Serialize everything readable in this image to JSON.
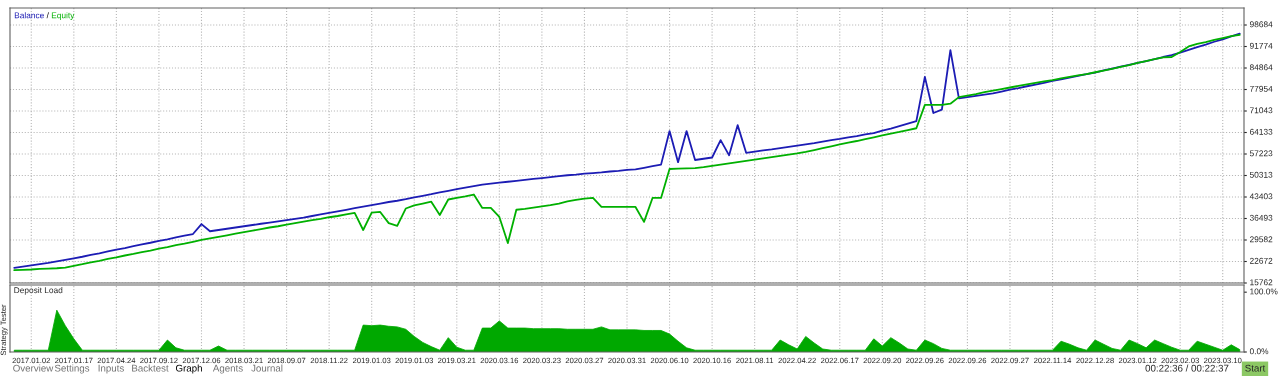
{
  "chart_data": [
    {
      "type": "line",
      "ylim": [
        15762,
        104150
      ],
      "yticks": [
        15762,
        22672,
        29582,
        36493,
        43403,
        50313,
        57223,
        64133,
        71043,
        77954,
        84864,
        91774,
        98684
      ],
      "categories": [
        null,
        null,
        "2017.01.02",
        null,
        null,
        null,
        null,
        "2017.01.17",
        null,
        null,
        null,
        null,
        "2017.04.24",
        null,
        null,
        null,
        null,
        "2017.09.12",
        null,
        null,
        null,
        null,
        "2017.12.06",
        null,
        null,
        null,
        null,
        "2018.03.21",
        null,
        null,
        null,
        null,
        "2018.09.07",
        null,
        null,
        null,
        null,
        "2018.11.22",
        null,
        null,
        null,
        null,
        "2019.01.03",
        null,
        null,
        null,
        null,
        "2019.01.03",
        null,
        null,
        null,
        null,
        "2019.03.21",
        null,
        null,
        null,
        null,
        "2020.03.16",
        null,
        null,
        null,
        null,
        "2020.03.23",
        null,
        null,
        null,
        null,
        "2020.03.27",
        null,
        null,
        null,
        null,
        "2020.03.31",
        null,
        null,
        null,
        null,
        "2020.06.10",
        null,
        null,
        null,
        null,
        "2020.10.16",
        null,
        null,
        null,
        null,
        "2021.08.11",
        null,
        null,
        null,
        null,
        "2022.04.22",
        null,
        null,
        null,
        null,
        "2022.06.17",
        null,
        null,
        null,
        null,
        "2022.09.20",
        null,
        null,
        null,
        null,
        "2022.09.26",
        null,
        null,
        null,
        null,
        "2022.09.26",
        null,
        null,
        null,
        null,
        "2022.09.27",
        null,
        null,
        null,
        null,
        "2022.11.14",
        null,
        null,
        null,
        null,
        "2022.12.28",
        null,
        null,
        null,
        null,
        "2023.01.12",
        null,
        null,
        null,
        null,
        "2023.02.03",
        null,
        null,
        null,
        null,
        "2023.03.10",
        null,
        null
      ],
      "tick_labels": "y",
      "grid": true,
      "legend": "top left",
      "line_style": "solid",
      "annotations": [
        "/"
      ],
      "series": [
        {
          "name": "Balance",
          "color": "#1c1cb4",
          "values": [
            20600,
            21000,
            21400,
            21800,
            22200,
            22700,
            23200,
            23700,
            24200,
            24800,
            25300,
            25900,
            26500,
            27000,
            27600,
            28200,
            28700,
            29300,
            29800,
            30400,
            31000,
            31500,
            34700,
            32400,
            32800,
            33200,
            33600,
            34000,
            34400,
            34800,
            35200,
            35600,
            36000,
            36400,
            36800,
            37300,
            37800,
            38300,
            38800,
            39300,
            39800,
            40300,
            40800,
            41300,
            41800,
            42200,
            42700,
            43300,
            43800,
            44300,
            44900,
            45400,
            45900,
            46400,
            46900,
            47400,
            47700,
            48000,
            48300,
            48600,
            48900,
            49200,
            49500,
            49800,
            50100,
            50400,
            50600,
            50900,
            51100,
            51300,
            51600,
            51800,
            52100,
            52300,
            52800,
            53300,
            53800,
            64600,
            54600,
            64600,
            55300,
            55700,
            56100,
            61700,
            56800,
            66500,
            57600,
            58000,
            58400,
            58700,
            59100,
            59500,
            59900,
            60300,
            60700,
            61200,
            61700,
            62100,
            62600,
            63000,
            63500,
            63900,
            64700,
            65400,
            66200,
            67000,
            67800,
            82000,
            70400,
            71500,
            90600,
            75100,
            75500,
            75900,
            76300,
            76700,
            77300,
            77900,
            78400,
            79000,
            79500,
            80100,
            80700,
            81200,
            81800,
            82300,
            82900,
            83400,
            84100,
            84700,
            85300,
            85900,
            86500,
            87100,
            87700,
            88400,
            89000,
            89800,
            90700,
            91600,
            92400,
            93300,
            94100,
            95000,
            95900
          ]
        },
        {
          "name": "Equity",
          "color": "#00b000",
          "values": [
            19900,
            20000,
            20100,
            20300,
            20400,
            20500,
            20700,
            21300,
            21800,
            22400,
            22900,
            23500,
            24000,
            24600,
            25100,
            25700,
            26200,
            26800,
            27300,
            27900,
            28400,
            29000,
            29600,
            30100,
            30600,
            31100,
            31600,
            32100,
            32600,
            33100,
            33600,
            34000,
            34500,
            35000,
            35500,
            36000,
            36400,
            36900,
            37300,
            37800,
            38300,
            32800,
            38400,
            38600,
            35000,
            34100,
            39700,
            40700,
            41300,
            41900,
            37600,
            42600,
            43100,
            43600,
            44200,
            39900,
            39900,
            37000,
            28600,
            39300,
            39600,
            40000,
            40400,
            40800,
            41300,
            42000,
            42500,
            42900,
            43100,
            40200,
            40200,
            40200,
            40200,
            40200,
            35400,
            43100,
            43100,
            52400,
            52500,
            52600,
            52700,
            53000,
            53400,
            53800,
            54200,
            54600,
            55000,
            55400,
            55800,
            56200,
            56600,
            57000,
            57400,
            57900,
            58500,
            59100,
            59700,
            60300,
            60900,
            61400,
            62000,
            62600,
            63200,
            63800,
            64300,
            64900,
            65500,
            73000,
            73000,
            73000,
            73400,
            75500,
            76000,
            76500,
            77100,
            77600,
            78100,
            78600,
            79100,
            79600,
            80100,
            80600,
            81000,
            81500,
            82000,
            82500,
            82900,
            83500,
            84000,
            84600,
            85200,
            85800,
            86500,
            87100,
            87700,
            88300,
            88400,
            90000,
            91800,
            92600,
            93200,
            93900,
            94500,
            95100,
            95500
          ]
        }
      ]
    },
    {
      "type": "area",
      "title": "Deposit Load",
      "ylim": [
        0,
        112
      ],
      "yticks": [
        {
          "value": 0,
          "label": "0.0%"
        },
        {
          "value": 100,
          "label": "100.0%"
        }
      ],
      "categories": [
        null,
        null,
        "2017.01.02",
        null,
        null,
        null,
        null,
        "2017.01.17",
        null,
        null,
        null,
        null,
        "2017.04.24",
        null,
        null,
        null,
        null,
        "2017.09.12",
        null,
        null,
        null,
        null,
        "2017.12.06",
        null,
        null,
        null,
        null,
        "2018.03.21",
        null,
        null,
        null,
        null,
        "2018.09.07",
        null,
        null,
        null,
        null,
        "2018.11.22",
        null,
        null,
        null,
        null,
        "2019.01.03",
        null,
        null,
        null,
        null,
        "2019.01.03",
        null,
        null,
        null,
        null,
        "2019.03.21",
        null,
        null,
        null,
        null,
        "2020.03.16",
        null,
        null,
        null,
        null,
        "2020.03.23",
        null,
        null,
        null,
        null,
        "2020.03.27",
        null,
        null,
        null,
        null,
        "2020.03.31",
        null,
        null,
        null,
        null,
        "2020.06.10",
        null,
        null,
        null,
        null,
        "2020.10.16",
        null,
        null,
        null,
        null,
        "2021.08.11",
        null,
        null,
        null,
        null,
        "2022.04.22",
        null,
        null,
        null,
        null,
        "2022.06.17",
        null,
        null,
        null,
        null,
        "2022.09.20",
        null,
        null,
        null,
        null,
        "2022.09.26",
        null,
        null,
        null,
        null,
        "2022.09.26",
        null,
        null,
        null,
        null,
        "2022.09.27",
        null,
        null,
        null,
        null,
        "2022.11.14",
        null,
        null,
        null,
        null,
        "2022.12.28",
        null,
        null,
        null,
        null,
        "2023.01.12",
        null,
        null,
        null,
        null,
        "2023.02.03",
        null,
        null,
        null,
        null,
        "2023.03.10",
        null,
        null
      ],
      "grid": "x",
      "annotations": [
        "Overview",
        "Settings",
        "Inputs",
        "Backtest",
        "Graph",
        "Agents",
        "Journal",
        "00:22:36 / 00:22:37",
        "Start",
        "Strategy Tester"
      ],
      "series": [
        {
          "color": "#00a800",
          "values": [
            3,
            3,
            3,
            3,
            3,
            70,
            44,
            22,
            3,
            3,
            3,
            3,
            3,
            3,
            3,
            3,
            3,
            3,
            20,
            7,
            3,
            3,
            3,
            3,
            10,
            3,
            3,
            3,
            3,
            3,
            3,
            3,
            3,
            3,
            3,
            3,
            3,
            3,
            3,
            3,
            3,
            45,
            44,
            45,
            43,
            42,
            38,
            26,
            16,
            9,
            3,
            24,
            8,
            3,
            3,
            40,
            40,
            52,
            40,
            40,
            40,
            39,
            39,
            39,
            39,
            38,
            38,
            38,
            38,
            42,
            37,
            37,
            37,
            37,
            36,
            36,
            36,
            30,
            18,
            7,
            3,
            3,
            3,
            3,
            3,
            3,
            3,
            3,
            3,
            3,
            20,
            12,
            5,
            26,
            15,
            5,
            3,
            3,
            3,
            3,
            3,
            22,
            10,
            24,
            15,
            5,
            3,
            20,
            14,
            6,
            3,
            3,
            3,
            3,
            3,
            3,
            3,
            3,
            3,
            3,
            3,
            3,
            3,
            18,
            13,
            7,
            3,
            20,
            13,
            6,
            3,
            20,
            14,
            7,
            20,
            14,
            8,
            3,
            3,
            18,
            13,
            8,
            3,
            12,
            4
          ]
        }
      ]
    }
  ]
}
